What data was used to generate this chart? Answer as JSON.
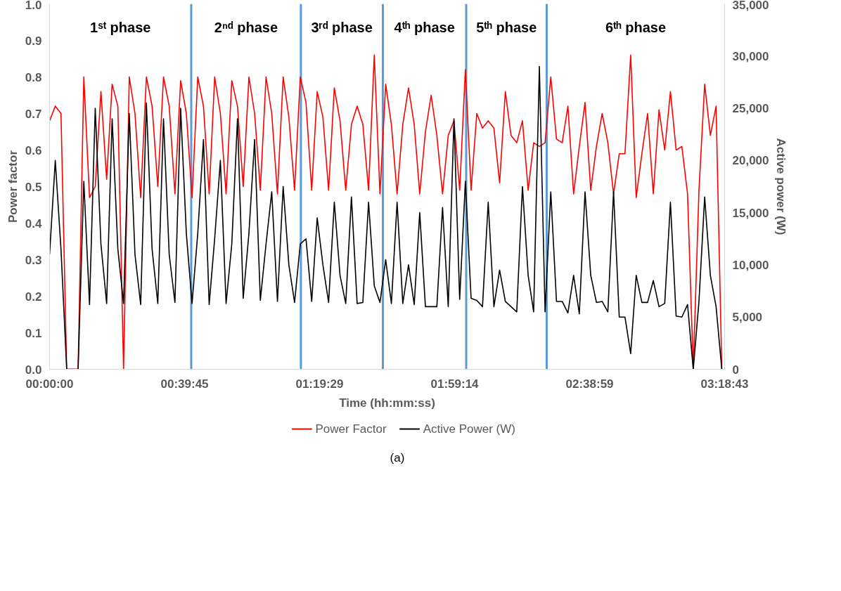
{
  "chart_data": {
    "type": "line",
    "xlabel": "Time (hh:mm:ss)",
    "ylabel": "Power factor",
    "y2label": "Active power (W)",
    "x": [
      0,
      0.028,
      0.056,
      0.084,
      0.112,
      0.14,
      0.168,
      0.196,
      0.224,
      0.252,
      0.28,
      0.307,
      0.335,
      0.363,
      0.391,
      0.419,
      0.447,
      0.475,
      0.503,
      0.531,
      0.559,
      0.587,
      0.615,
      0.643,
      0.671,
      0.699,
      0.727,
      0.755,
      0.783,
      0.81,
      0.838,
      0.866,
      0.894,
      0.922,
      0.95,
      0.978,
      1.006,
      1.034,
      1.062,
      1.09,
      1.118,
      1.146,
      1.174,
      1.202,
      1.23,
      1.258,
      1.286,
      1.313,
      1.341,
      1.369,
      1.397,
      1.425,
      1.453,
      1.481,
      1.509,
      1.537,
      1.565,
      1.593,
      1.621,
      1.649,
      1.677,
      1.705,
      1.733,
      1.761,
      1.789,
      1.816,
      1.844,
      1.872,
      1.9,
      1.928,
      1.956,
      1.984,
      2.012,
      2.04,
      2.068,
      2.096,
      2.124,
      2.152,
      2.18,
      2.208,
      2.236,
      2.264,
      2.292,
      2.32,
      2.348,
      2.375,
      2.403,
      2.431,
      2.459,
      2.487,
      2.515,
      2.543,
      2.571,
      2.599,
      2.627,
      2.655,
      2.683,
      2.711,
      2.739,
      2.767,
      2.795,
      2.823,
      2.851,
      2.878,
      2.906,
      2.934,
      2.962,
      2.99,
      3.018,
      3.046,
      3.074,
      3.102,
      3.13,
      3.158,
      3.186,
      3.214,
      3.242,
      3.27,
      3.298
    ],
    "series": [
      {
        "name": "Power Factor",
        "color": "#ff0000",
        "values": [
          0.68,
          0.72,
          0.7,
          0.0,
          0.0,
          0.0,
          0.8,
          0.47,
          0.5,
          0.76,
          0.52,
          0.78,
          0.72,
          0.0,
          0.8,
          0.7,
          0.47,
          0.8,
          0.72,
          0.5,
          0.8,
          0.72,
          0.48,
          0.79,
          0.7,
          0.47,
          0.8,
          0.72,
          0.48,
          0.8,
          0.7,
          0.48,
          0.79,
          0.72,
          0.5,
          0.8,
          0.7,
          0.49,
          0.8,
          0.7,
          0.48,
          0.8,
          0.69,
          0.49,
          0.8,
          0.73,
          0.49,
          0.76,
          0.69,
          0.49,
          0.77,
          0.68,
          0.49,
          0.67,
          0.72,
          0.67,
          0.49,
          0.86,
          0.48,
          0.78,
          0.67,
          0.48,
          0.67,
          0.77,
          0.67,
          0.48,
          0.65,
          0.75,
          0.64,
          0.48,
          0.64,
          0.68,
          0.49,
          0.82,
          0.49,
          0.7,
          0.66,
          0.68,
          0.66,
          0.51,
          0.76,
          0.64,
          0.62,
          0.68,
          0.49,
          0.62,
          0.61,
          0.62,
          0.8,
          0.63,
          0.62,
          0.72,
          0.48,
          0.61,
          0.73,
          0.49,
          0.61,
          0.7,
          0.62,
          0.48,
          0.59,
          0.59,
          0.86,
          0.47,
          0.59,
          0.7,
          0.48,
          0.71,
          0.6,
          0.76,
          0.6,
          0.61,
          0.48,
          0.0,
          0.49,
          0.78,
          0.64,
          0.72,
          0.0
        ]
      },
      {
        "name": "Active Power (W)",
        "color": "#000000",
        "axis": "y2",
        "values": [
          11000,
          20000,
          11500,
          0,
          0,
          0,
          18000,
          6200,
          25000,
          12000,
          6300,
          24000,
          11500,
          6300,
          24500,
          11000,
          6200,
          25500,
          11500,
          6300,
          24000,
          11000,
          6400,
          25000,
          13000,
          6300,
          13000,
          22000,
          6200,
          12500,
          20000,
          6300,
          12000,
          24000,
          6800,
          13000,
          22000,
          6600,
          12000,
          17000,
          6500,
          17500,
          10000,
          6400,
          12000,
          12500,
          6500,
          14500,
          10000,
          6400,
          16000,
          9000,
          6300,
          16500,
          6300,
          6400,
          16000,
          8000,
          6400,
          10500,
          6300,
          16000,
          6300,
          10000,
          6200,
          15000,
          6000,
          6000,
          6000,
          15500,
          6000,
          24000,
          6700,
          18000,
          6800,
          6600,
          6000,
          16000,
          6000,
          9500,
          6500,
          6000,
          5500,
          17500,
          9000,
          5500,
          29000,
          5500,
          17000,
          6500,
          6500,
          5400,
          9000,
          5300,
          17000,
          9000,
          6400,
          6500,
          5500,
          17000,
          5000,
          5000,
          1500,
          9000,
          6400,
          6400,
          8500,
          6000,
          6300,
          16000,
          5100,
          5000,
          6200,
          0,
          6500,
          16500,
          9000,
          6000,
          0
        ]
      }
    ],
    "xlim": [
      0,
      3.3119
    ],
    "xticks": [
      {
        "value": 0,
        "label": "00:00:00"
      },
      {
        "value": 0.6625,
        "label": "00:39:45"
      },
      {
        "value": 1.3247,
        "label": "01:19:29"
      },
      {
        "value": 1.9872,
        "label": "01:59:14"
      },
      {
        "value": 2.6497,
        "label": "02:38:59"
      },
      {
        "value": 3.3119,
        "label": "03:18:43"
      }
    ],
    "ylim": [
      0,
      1
    ],
    "yticks": [
      {
        "value": 0,
        "label": "0.0"
      },
      {
        "value": 0.1,
        "label": "0.1"
      },
      {
        "value": 0.2,
        "label": "0.2"
      },
      {
        "value": 0.3,
        "label": "0.3"
      },
      {
        "value": 0.4,
        "label": "0.4"
      },
      {
        "value": 0.5,
        "label": "0.5"
      },
      {
        "value": 0.6,
        "label": "0.6"
      },
      {
        "value": 0.7,
        "label": "0.7"
      },
      {
        "value": 0.8,
        "label": "0.8"
      },
      {
        "value": 0.9,
        "label": "0.9"
      },
      {
        "value": 1,
        "label": "1.0"
      }
    ],
    "y2lim": [
      0,
      35000
    ],
    "y2ticks": [
      0,
      {
        "value": 5000,
        "label": "5,000"
      },
      {
        "value": 10000,
        "label": "10,000"
      },
      {
        "value": 15000,
        "label": "15,000"
      },
      {
        "value": 20000,
        "label": "20,000"
      },
      {
        "value": 25000,
        "label": "25,000"
      },
      {
        "value": 30000,
        "label": "30,000"
      },
      {
        "value": 35000,
        "label": "35,000"
      }
    ],
    "ref_lines": [
      {
        "axis": "x",
        "value": 0.695,
        "color": "#5b9bd5"
      },
      {
        "axis": "x",
        "value": 1.233,
        "color": "#5b9bd5"
      },
      {
        "axis": "x",
        "value": 1.635,
        "color": "#5b9bd5"
      },
      {
        "axis": "x",
        "value": 2.044,
        "color": "#5b9bd5"
      },
      {
        "axis": "x",
        "value": 2.439,
        "color": "#5b9bd5"
      }
    ],
    "annotations": [
      "1ˢᵗ phase",
      "2ⁿᵈ phase",
      "3ʳᵈ phase",
      "4ᵗʰ phase",
      "5ᵗʰ phase",
      "6ᵗʰ phase",
      "(a)"
    ],
    "legend": "bottom",
    "grid": false,
    "line_style": "solid",
    "marker": "none"
  }
}
